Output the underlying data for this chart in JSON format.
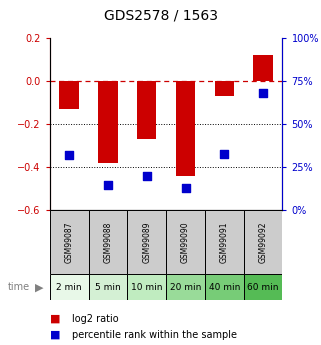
{
  "title": "GDS2578 / 1563",
  "samples": [
    "GSM99087",
    "GSM99088",
    "GSM99089",
    "GSM99090",
    "GSM99091",
    "GSM99092"
  ],
  "time_labels": [
    "2 min",
    "5 min",
    "10 min",
    "20 min",
    "40 min",
    "60 min"
  ],
  "log2_ratio": [
    -0.13,
    -0.38,
    -0.27,
    -0.44,
    -0.07,
    0.12
  ],
  "percentile_rank": [
    32,
    15,
    20,
    13,
    33,
    68
  ],
  "left_ylim": [
    -0.6,
    0.2
  ],
  "right_ylim": [
    0,
    100
  ],
  "left_yticks": [
    -0.6,
    -0.4,
    -0.2,
    0.0,
    0.2
  ],
  "right_yticks": [
    0,
    25,
    50,
    75,
    100
  ],
  "bar_color": "#cc0000",
  "dot_color": "#0000cc",
  "dot_size": 36,
  "grid_color": "#000000",
  "dashed_line_color": "#cc0000",
  "green_colors": [
    "#e8f8e8",
    "#d4f0d4",
    "#c0ecc0",
    "#99db99",
    "#77cc77",
    "#55bb55"
  ],
  "sample_box_color": "#cccccc",
  "left_axis_color": "#cc0000",
  "right_axis_color": "#0000cc",
  "background_color": "#ffffff",
  "title_fontsize": 10,
  "tick_fontsize": 7,
  "sample_fontsize": 5.5,
  "time_fontsize": 6.5,
  "legend_fontsize": 7
}
